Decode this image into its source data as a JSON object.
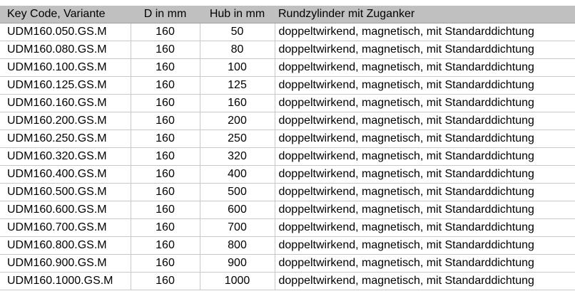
{
  "headers": [
    "Key Code, Variante",
    "D in mm",
    "Hub in mm",
    "Rundzylinder mit Zuganker"
  ],
  "rows": [
    [
      "UDM160.050.GS.M",
      "160",
      "50",
      "doppeltwirkend, magnetisch, mit Standarddichtung"
    ],
    [
      "UDM160.080.GS.M",
      "160",
      "80",
      "doppeltwirkend, magnetisch, mit Standarddichtung"
    ],
    [
      "UDM160.100.GS.M",
      "160",
      "100",
      "doppeltwirkend, magnetisch, mit Standarddichtung"
    ],
    [
      "UDM160.125.GS.M",
      "160",
      "125",
      "doppeltwirkend, magnetisch, mit Standarddichtung"
    ],
    [
      "UDM160.160.GS.M",
      "160",
      "160",
      "doppeltwirkend, magnetisch, mit Standarddichtung"
    ],
    [
      "UDM160.200.GS.M",
      "160",
      "200",
      "doppeltwirkend, magnetisch, mit Standarddichtung"
    ],
    [
      "UDM160.250.GS.M",
      "160",
      "250",
      "doppeltwirkend, magnetisch, mit Standarddichtung"
    ],
    [
      "UDM160.320.GS.M",
      "160",
      "320",
      "doppeltwirkend, magnetisch, mit Standarddichtung"
    ],
    [
      "UDM160.400.GS.M",
      "160",
      "400",
      "doppeltwirkend, magnetisch, mit Standarddichtung"
    ],
    [
      "UDM160.500.GS.M",
      "160",
      "500",
      "doppeltwirkend, magnetisch, mit Standarddichtung"
    ],
    [
      "UDM160.600.GS.M",
      "160",
      "600",
      "doppeltwirkend, magnetisch, mit Standarddichtung"
    ],
    [
      "UDM160.700.GS.M",
      "160",
      "700",
      "doppeltwirkend, magnetisch, mit Standarddichtung"
    ],
    [
      "UDM160.800.GS.M",
      "160",
      "800",
      "doppeltwirkend, magnetisch, mit Standarddichtung"
    ],
    [
      "UDM160.900.GS.M",
      "160",
      "900",
      "doppeltwirkend, magnetisch, mit Standarddichtung"
    ],
    [
      "UDM160.1000.GS.M",
      "160",
      "1000",
      "doppeltwirkend, magnetisch, mit Standarddichtung"
    ]
  ]
}
